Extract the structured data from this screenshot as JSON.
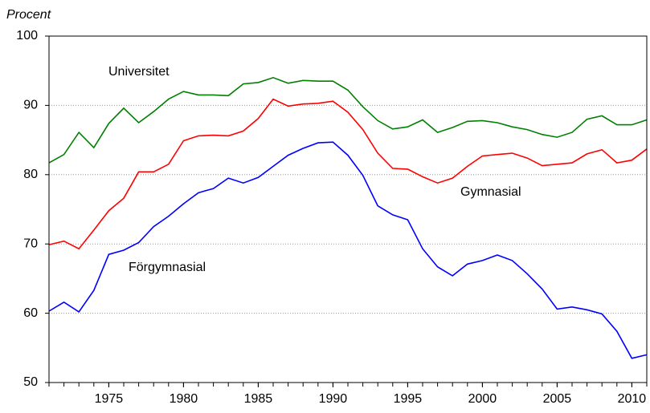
{
  "chart_data": {
    "type": "line",
    "y_label": "Procent",
    "x": [
      1971,
      1972,
      1973,
      1974,
      1975,
      1976,
      1977,
      1978,
      1979,
      1980,
      1981,
      1982,
      1983,
      1984,
      1985,
      1986,
      1987,
      1988,
      1989,
      1990,
      1991,
      1992,
      1993,
      1994,
      1995,
      1996,
      1997,
      1998,
      1999,
      2000,
      2001,
      2002,
      2003,
      2004,
      2005,
      2006,
      2007,
      2008,
      2009,
      2010,
      2011
    ],
    "series": [
      {
        "name": "Universitet",
        "color": "#008000",
        "values": [
          81.7,
          82.9,
          86.1,
          83.9,
          87.4,
          89.6,
          87.5,
          89.1,
          90.9,
          92.0,
          91.5,
          91.5,
          91.4,
          93.1,
          93.3,
          94.0,
          93.2,
          93.6,
          93.5,
          93.5,
          92.2,
          89.8,
          87.8,
          86.6,
          86.9,
          87.9,
          86.1,
          86.8,
          87.7,
          87.8,
          87.5,
          86.9,
          86.5,
          85.8,
          85.4,
          86.1,
          88.0,
          88.5,
          87.2,
          87.2,
          87.9
        ]
      },
      {
        "name": "Gymnasial",
        "color": "#ff0000",
        "values": [
          69.9,
          70.4,
          69.3,
          72.0,
          74.8,
          76.6,
          80.4,
          80.4,
          81.5,
          84.9,
          85.6,
          85.7,
          85.6,
          86.3,
          88.1,
          90.9,
          89.9,
          90.2,
          90.3,
          90.6,
          89.0,
          86.5,
          83.1,
          80.9,
          80.8,
          79.7,
          78.8,
          79.5,
          81.2,
          82.7,
          82.9,
          83.1,
          82.4,
          81.3,
          81.5,
          81.7,
          83.0,
          83.6,
          81.7,
          82.1,
          83.7
        ]
      },
      {
        "name": "Förgymnasial",
        "color": "#0000ff",
        "values": [
          60.3,
          61.6,
          60.2,
          63.3,
          68.5,
          69.1,
          70.2,
          72.5,
          74.0,
          75.8,
          77.4,
          78.0,
          79.5,
          78.8,
          79.6,
          81.2,
          82.8,
          83.8,
          84.6,
          84.7,
          82.8,
          79.9,
          75.5,
          74.2,
          73.5,
          69.3,
          66.7,
          65.4,
          67.1,
          67.6,
          68.4,
          67.6,
          65.7,
          63.5,
          60.6,
          60.9,
          60.5,
          59.9,
          57.4,
          53.5,
          54.0
        ]
      }
    ],
    "xlim": [
      1971,
      2011
    ],
    "xticks": [
      1975,
      1980,
      1985,
      1990,
      1995,
      2000,
      2005,
      2010
    ],
    "ylim": [
      50,
      100
    ],
    "yticks": [
      50,
      60,
      70,
      80,
      90,
      100
    ],
    "grid": true
  }
}
